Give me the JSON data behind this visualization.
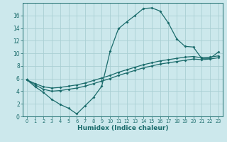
{
  "xlabel": "Humidex (Indice chaleur)",
  "bg_color": "#cce8ec",
  "grid_color": "#aacfd4",
  "line_color": "#1a6b6b",
  "xlim": [
    -0.5,
    23.5
  ],
  "ylim": [
    0,
    18
  ],
  "xticks": [
    0,
    1,
    2,
    3,
    4,
    5,
    6,
    7,
    8,
    9,
    10,
    11,
    12,
    13,
    14,
    15,
    16,
    17,
    18,
    19,
    20,
    21,
    22,
    23
  ],
  "yticks": [
    0,
    2,
    4,
    6,
    8,
    10,
    12,
    14,
    16
  ],
  "line1_x": [
    0,
    1,
    2,
    3,
    4,
    5,
    6,
    7,
    8,
    9,
    10,
    11,
    12,
    13,
    14,
    15,
    16,
    17,
    18,
    19,
    20,
    21,
    22,
    23
  ],
  "line1_y": [
    5.8,
    4.7,
    3.8,
    2.7,
    1.9,
    1.3,
    0.4,
    1.7,
    3.0,
    4.8,
    10.3,
    13.9,
    15.0,
    16.0,
    17.1,
    17.2,
    16.7,
    14.8,
    12.3,
    11.1,
    11.0,
    9.2,
    9.2,
    10.2
  ],
  "line2_x": [
    0,
    1,
    2,
    3,
    4,
    5,
    6,
    7,
    8,
    9,
    10,
    11,
    12,
    13,
    14,
    15,
    16,
    17,
    18,
    19,
    20,
    21,
    22,
    23
  ],
  "line2_y": [
    5.8,
    5.2,
    4.7,
    4.5,
    4.6,
    4.8,
    5.0,
    5.3,
    5.7,
    6.1,
    6.5,
    7.0,
    7.4,
    7.8,
    8.2,
    8.5,
    8.8,
    9.0,
    9.2,
    9.4,
    9.5,
    9.3,
    9.4,
    9.6
  ],
  "line3_x": [
    0,
    1,
    2,
    3,
    4,
    5,
    6,
    7,
    8,
    9,
    10,
    11,
    12,
    13,
    14,
    15,
    16,
    17,
    18,
    19,
    20,
    21,
    22,
    23
  ],
  "line3_y": [
    5.8,
    5.0,
    4.3,
    4.0,
    4.1,
    4.3,
    4.5,
    4.8,
    5.2,
    5.6,
    6.0,
    6.5,
    6.9,
    7.3,
    7.7,
    8.0,
    8.3,
    8.5,
    8.7,
    8.9,
    9.1,
    9.0,
    9.1,
    9.3
  ]
}
